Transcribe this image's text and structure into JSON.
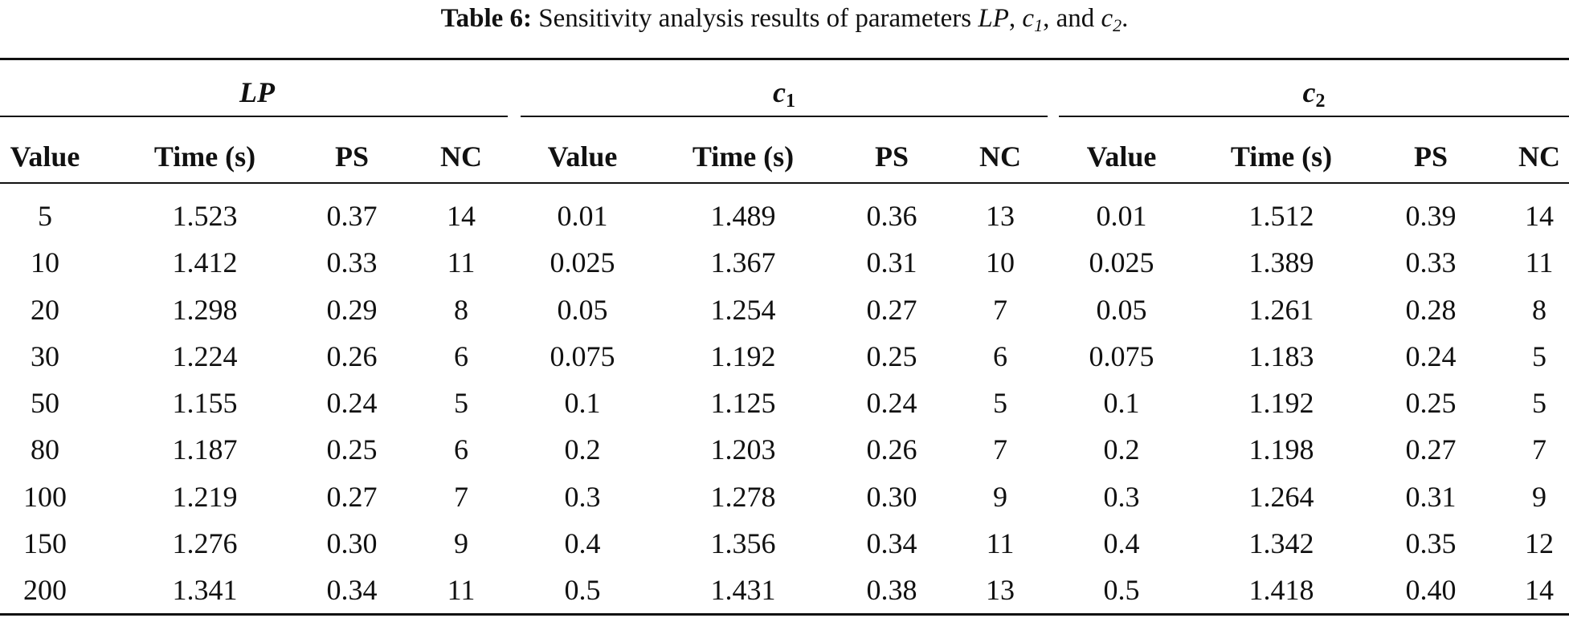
{
  "caption": {
    "label": "Table 6:",
    "text_prefix": "Sensitivity analysis results of parameters",
    "param_lp": "LP",
    "sep1": ",",
    "param_c": "c",
    "sub_1": "1",
    "sep2": ", and",
    "sub_2": "2",
    "end": "."
  },
  "groups": [
    {
      "base": "LP",
      "sub": ""
    },
    {
      "base": "c",
      "sub": "1"
    },
    {
      "base": "c",
      "sub": "2"
    }
  ],
  "columns": [
    "Value",
    "Time (s)",
    "PS",
    "NC",
    "Value",
    "Time (s)",
    "PS",
    "NC",
    "Value",
    "Time (s)",
    "PS",
    "NC"
  ],
  "rows": [
    [
      "5",
      "1.523",
      "0.37",
      "14",
      "0.01",
      "1.489",
      "0.36",
      "13",
      "0.01",
      "1.512",
      "0.39",
      "14"
    ],
    [
      "10",
      "1.412",
      "0.33",
      "11",
      "0.025",
      "1.367",
      "0.31",
      "10",
      "0.025",
      "1.389",
      "0.33",
      "11"
    ],
    [
      "20",
      "1.298",
      "0.29",
      "8",
      "0.05",
      "1.254",
      "0.27",
      "7",
      "0.05",
      "1.261",
      "0.28",
      "8"
    ],
    [
      "30",
      "1.224",
      "0.26",
      "6",
      "0.075",
      "1.192",
      "0.25",
      "6",
      "0.075",
      "1.183",
      "0.24",
      "5"
    ],
    [
      "50",
      "1.155",
      "0.24",
      "5",
      "0.1",
      "1.125",
      "0.24",
      "5",
      "0.1",
      "1.192",
      "0.25",
      "5"
    ],
    [
      "80",
      "1.187",
      "0.25",
      "6",
      "0.2",
      "1.203",
      "0.26",
      "7",
      "0.2",
      "1.198",
      "0.27",
      "7"
    ],
    [
      "100",
      "1.219",
      "0.27",
      "7",
      "0.3",
      "1.278",
      "0.30",
      "9",
      "0.3",
      "1.264",
      "0.31",
      "9"
    ],
    [
      "150",
      "1.276",
      "0.30",
      "9",
      "0.4",
      "1.356",
      "0.34",
      "11",
      "0.4",
      "1.342",
      "0.35",
      "12"
    ],
    [
      "200",
      "1.341",
      "0.34",
      "11",
      "0.5",
      "1.431",
      "0.38",
      "13",
      "0.5",
      "1.418",
      "0.40",
      "14"
    ]
  ]
}
